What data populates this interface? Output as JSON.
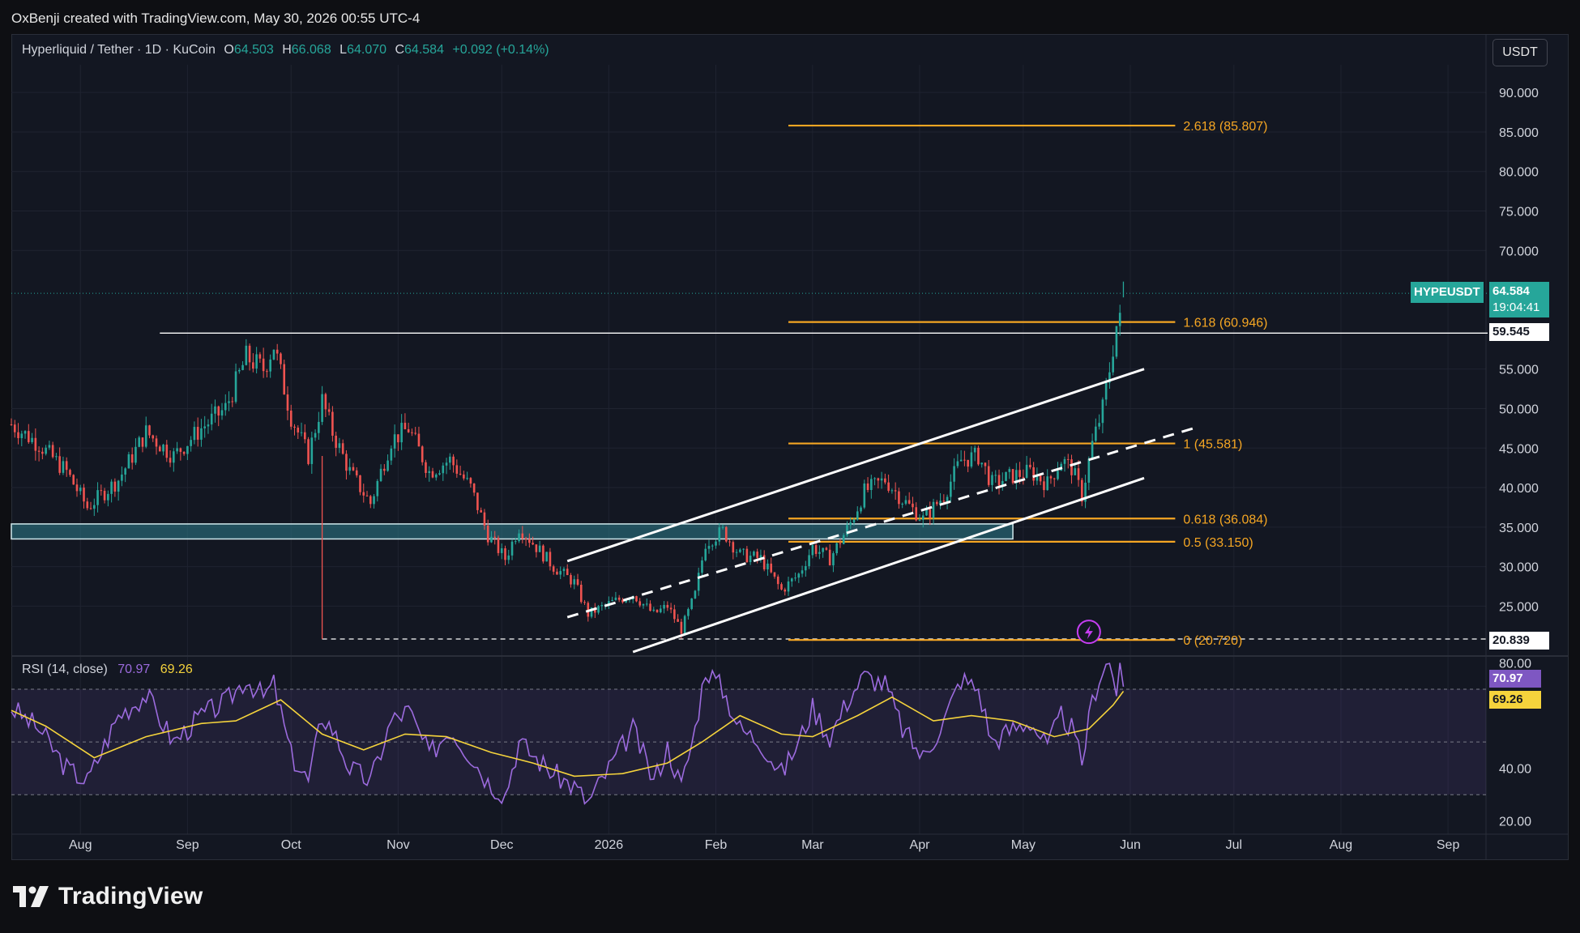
{
  "header": {
    "attribution": "OxBenji created with TradingView.com, May 30, 2026 00:55 UTC-4",
    "brand": "TradingView"
  },
  "legend": {
    "symbol": "Hyperliquid / Tether · 1D · KuCoin",
    "open_label": "O",
    "open": "64.503",
    "high_label": "H",
    "high": "66.068",
    "low_label": "L",
    "low": "64.070",
    "close_label": "C",
    "close": "64.584",
    "change": "+0.092 (+0.14%)"
  },
  "currency": "USDT",
  "colors": {
    "background": "#131722",
    "up": "#26a69a",
    "down": "#ef5350",
    "fib": "#f5a623",
    "rsi": "#9c6bde",
    "rsi_ma": "#f5d33c",
    "zone": "#2e7d8c",
    "channel": "#ffffff",
    "hype_badge": "#26a69a"
  },
  "icons": {
    "alert": "lightning-icon",
    "logo": "tradingview-logo-icon"
  },
  "badges": {
    "symbol": "HYPEUSDT",
    "price": "64.584",
    "countdown": "19:04:41",
    "resistance": "59.545",
    "low": "20.839",
    "rsi_value": "70.97",
    "rsi_ma_value": "69.26"
  },
  "rsi": {
    "label": "RSI (14, close)",
    "value": "70.97",
    "ma": "69.26"
  },
  "chart_data": [
    {
      "type": "candlestick",
      "title": "Hyperliquid / Tether · 1D · KuCoin",
      "ylim": [
        19.2,
        93.5
      ],
      "y_ticks": [
        "90.000",
        "85.000",
        "80.000",
        "75.000",
        "70.000",
        "55.000",
        "50.000",
        "45.000",
        "40.000",
        "35.000",
        "30.000",
        "25.000"
      ],
      "x_ticks": [
        "Aug",
        "Sep",
        "Oct",
        "Nov",
        "Dec",
        "2026",
        "Feb",
        "Mar",
        "Apr",
        "May",
        "Jun",
        "Jul",
        "Aug",
        "Sep"
      ],
      "x_tick_dates": [
        "2025-08-01",
        "2025-09-01",
        "2025-10-01",
        "2025-11-01",
        "2025-12-01",
        "2026-01-01",
        "2026-02-01",
        "2026-03-01",
        "2026-04-01",
        "2026-05-01",
        "2026-06-01",
        "2026-07-01",
        "2026-08-01",
        "2026-09-01"
      ],
      "x_range": [
        "2025-07-12",
        "2026-09-12"
      ],
      "close_path": [
        [
          "2025-07-12",
          48.0
        ],
        [
          "2025-07-20",
          45.5
        ],
        [
          "2025-07-28",
          42.0
        ],
        [
          "2025-08-03",
          37.5
        ],
        [
          "2025-08-12",
          41.0
        ],
        [
          "2025-08-20",
          47.0
        ],
        [
          "2025-08-28",
          44.0
        ],
        [
          "2025-09-05",
          47.5
        ],
        [
          "2025-09-12",
          50.0
        ],
        [
          "2025-09-18",
          56.5
        ],
        [
          "2025-09-23",
          55.0
        ],
        [
          "2025-09-26",
          58.0
        ],
        [
          "2025-10-01",
          49.0
        ],
        [
          "2025-10-06",
          44.0
        ],
        [
          "2025-10-10",
          51.0
        ],
        [
          "2025-10-13",
          47.0
        ],
        [
          "2025-10-18",
          42.0
        ],
        [
          "2025-10-24",
          38.0
        ],
        [
          "2025-10-30",
          46.0
        ],
        [
          "2025-11-04",
          47.5
        ],
        [
          "2025-11-10",
          42.0
        ],
        [
          "2025-11-16",
          43.5
        ],
        [
          "2025-11-22",
          40.0
        ],
        [
          "2025-11-27",
          34.0
        ],
        [
          "2025-12-02",
          31.0
        ],
        [
          "2025-12-06",
          35.0
        ],
        [
          "2025-12-10",
          33.0
        ],
        [
          "2025-12-16",
          30.0
        ],
        [
          "2025-12-22",
          28.0
        ],
        [
          "2025-12-26",
          24.0
        ],
        [
          "2026-01-02",
          25.5
        ],
        [
          "2026-01-08",
          26.5
        ],
        [
          "2026-01-14",
          24.0
        ],
        [
          "2026-01-18",
          25.0
        ],
        [
          "2026-01-22",
          22.0
        ],
        [
          "2026-01-26",
          26.5
        ],
        [
          "2026-01-29",
          33.0
        ],
        [
          "2026-02-03",
          34.5
        ],
        [
          "2026-02-08",
          31.5
        ],
        [
          "2026-02-14",
          31.0
        ],
        [
          "2026-02-20",
          27.0
        ],
        [
          "2026-02-25",
          29.0
        ],
        [
          "2026-03-01",
          32.5
        ],
        [
          "2026-03-06",
          31.0
        ],
        [
          "2026-03-12",
          35.5
        ],
        [
          "2026-03-16",
          39.5
        ],
        [
          "2026-03-22",
          41.0
        ],
        [
          "2026-03-27",
          38.5
        ],
        [
          "2026-04-02",
          36.0
        ],
        [
          "2026-04-08",
          39.0
        ],
        [
          "2026-04-13",
          43.5
        ],
        [
          "2026-04-18",
          44.0
        ],
        [
          "2026-04-22",
          40.5
        ],
        [
          "2026-04-28",
          41.5
        ],
        [
          "2026-05-03",
          42.0
        ],
        [
          "2026-05-08",
          40.5
        ],
        [
          "2026-05-12",
          43.5
        ],
        [
          "2026-05-15",
          42.5
        ],
        [
          "2026-05-18",
          39.0
        ],
        [
          "2026-05-21",
          45.5
        ],
        [
          "2026-05-24",
          50.0
        ],
        [
          "2026-05-26",
          55.0
        ],
        [
          "2026-05-28",
          60.5
        ],
        [
          "2026-05-29",
          61.0
        ],
        [
          "2026-05-30",
          64.584
        ]
      ],
      "horizontal_lines": [
        {
          "label": "59.545",
          "value": 59.545,
          "from": "2025-08-24"
        },
        {
          "label": "20.839",
          "value": 20.839,
          "from": "2025-10-10",
          "style": "dashed"
        }
      ],
      "fibonacci": [
        {
          "label": "2.618 (85.807)",
          "value": 85.807
        },
        {
          "label": "1.618 (60.946)",
          "value": 60.946
        },
        {
          "label": "1 (45.581)",
          "value": 45.581
        },
        {
          "label": "0.618 (36.084)",
          "value": 36.084
        },
        {
          "label": "0.5 (33.150)",
          "value": 33.15
        },
        {
          "label": "0 (20.720)",
          "value": 20.72
        }
      ],
      "fib_range": [
        "2026-02-22",
        "2026-06-14"
      ],
      "zone": {
        "from_date": "2025-07-12",
        "to_date": "2026-04-28",
        "top": 35.4,
        "bottom": 33.5
      },
      "channel": [
        {
          "name": "upper",
          "from": [
            "2025-12-20",
            30.7
          ],
          "to": [
            "2026-06-05",
            55.0
          ],
          "style": "solid"
        },
        {
          "name": "middle",
          "from": [
            "2025-12-20",
            23.6
          ],
          "to": [
            "2026-06-20",
            47.6
          ],
          "style": "dashed"
        },
        {
          "name": "lower",
          "from": [
            "2026-01-08",
            19.2
          ],
          "to": [
            "2026-06-05",
            41.2
          ],
          "style": "solid"
        }
      ]
    },
    {
      "type": "line",
      "title": "RSI (14, close)",
      "ylim": [
        15,
        82
      ],
      "y_ticks": [
        "80.00",
        "40.00",
        "20.00"
      ],
      "bands": [
        70,
        50,
        30
      ],
      "series": [
        {
          "name": "RSI",
          "values": [
            [
              "2025-07-12",
              63
            ],
            [
              "2025-07-20",
              55
            ],
            [
              "2025-07-28",
              40
            ],
            [
              "2025-08-03",
              35
            ],
            [
              "2025-08-12",
              60
            ],
            [
              "2025-08-20",
              68
            ],
            [
              "2025-08-28",
              50
            ],
            [
              "2025-09-05",
              60
            ],
            [
              "2025-09-12",
              65
            ],
            [
              "2025-09-18",
              74
            ],
            [
              "2025-09-23",
              67
            ],
            [
              "2025-09-26",
              72
            ],
            [
              "2025-10-01",
              45
            ],
            [
              "2025-10-06",
              35
            ],
            [
              "2025-10-10",
              60
            ],
            [
              "2025-10-13",
              55
            ],
            [
              "2025-10-18",
              40
            ],
            [
              "2025-10-24",
              35
            ],
            [
              "2025-10-30",
              58
            ],
            [
              "2025-11-04",
              62
            ],
            [
              "2025-11-10",
              45
            ],
            [
              "2025-11-16",
              55
            ],
            [
              "2025-11-22",
              45
            ],
            [
              "2025-11-27",
              35
            ],
            [
              "2025-12-02",
              30
            ],
            [
              "2025-12-06",
              50
            ],
            [
              "2025-12-10",
              45
            ],
            [
              "2025-12-16",
              38
            ],
            [
              "2025-12-22",
              33
            ],
            [
              "2025-12-26",
              27
            ],
            [
              "2026-01-02",
              42
            ],
            [
              "2026-01-08",
              55
            ],
            [
              "2026-01-14",
              35
            ],
            [
              "2026-01-18",
              48
            ],
            [
              "2026-01-22",
              33
            ],
            [
              "2026-01-26",
              55
            ],
            [
              "2026-01-29",
              78
            ],
            [
              "2026-02-03",
              70
            ],
            [
              "2026-02-08",
              55
            ],
            [
              "2026-02-14",
              50
            ],
            [
              "2026-02-20",
              38
            ],
            [
              "2026-02-25",
              50
            ],
            [
              "2026-03-01",
              63
            ],
            [
              "2026-03-06",
              52
            ],
            [
              "2026-03-12",
              68
            ],
            [
              "2026-03-16",
              75
            ],
            [
              "2026-03-22",
              72
            ],
            [
              "2026-03-27",
              55
            ],
            [
              "2026-04-02",
              44
            ],
            [
              "2026-04-08",
              58
            ],
            [
              "2026-04-13",
              74
            ],
            [
              "2026-04-18",
              70
            ],
            [
              "2026-04-22",
              50
            ],
            [
              "2026-04-28",
              55
            ],
            [
              "2026-05-03",
              58
            ],
            [
              "2026-05-08",
              48
            ],
            [
              "2026-05-12",
              60
            ],
            [
              "2026-05-15",
              55
            ],
            [
              "2026-05-18",
              42
            ],
            [
              "2026-05-21",
              66
            ],
            [
              "2026-05-24",
              78
            ],
            [
              "2026-05-26",
              80
            ],
            [
              "2026-05-28",
              70
            ],
            [
              "2026-05-29",
              76
            ],
            [
              "2026-05-30",
              70.97
            ]
          ]
        },
        {
          "name": "RSI-based MA",
          "values": [
            [
              "2025-07-12",
              62
            ],
            [
              "2025-07-22",
              56
            ],
            [
              "2025-08-05",
              44
            ],
            [
              "2025-08-20",
              52
            ],
            [
              "2025-09-05",
              57
            ],
            [
              "2025-09-15",
              58
            ],
            [
              "2025-09-28",
              66
            ],
            [
              "2025-10-10",
              53
            ],
            [
              "2025-10-22",
              47
            ],
            [
              "2025-11-03",
              53
            ],
            [
              "2025-11-15",
              52
            ],
            [
              "2025-11-28",
              46
            ],
            [
              "2025-12-10",
              42
            ],
            [
              "2025-12-22",
              37
            ],
            [
              "2026-01-05",
              38
            ],
            [
              "2026-01-18",
              42
            ],
            [
              "2026-01-28",
              50
            ],
            [
              "2026-02-08",
              60
            ],
            [
              "2026-02-20",
              53
            ],
            [
              "2026-03-01",
              52
            ],
            [
              "2026-03-14",
              60
            ],
            [
              "2026-03-24",
              67
            ],
            [
              "2026-04-05",
              58
            ],
            [
              "2026-04-16",
              60
            ],
            [
              "2026-04-28",
              58
            ],
            [
              "2026-05-10",
              52
            ],
            [
              "2026-05-20",
              55
            ],
            [
              "2026-05-27",
              64
            ],
            [
              "2026-05-30",
              69.26
            ]
          ]
        }
      ]
    }
  ]
}
